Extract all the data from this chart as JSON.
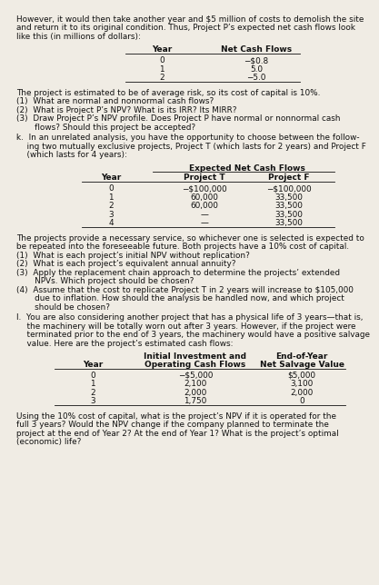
{
  "bg_color": "#f0ece4",
  "intro_text_lines": [
    "However, it would then take another year and $5 million of costs to demolish the site",
    "and return it to its original condition. Thus, Project P’s expected net cash flows look",
    "like this (in millions of dollars):"
  ],
  "table1_title_year": "Year",
  "table1_title_ncf": "Net Cash Flows",
  "table1_rows": [
    [
      "0",
      "−$0.8"
    ],
    [
      "1",
      "5.0"
    ],
    [
      "2",
      "−5.0"
    ]
  ],
  "para1": "The project is estimated to be of average risk, so its cost of capital is 10%.",
  "items_j": [
    [
      "(1)  What are normal and nonnormal cash flows?"
    ],
    [
      "(2)  What is Project P’s NPV? What is its IRR? Its MIRR?"
    ],
    [
      "(3)  Draw Project P’s NPV profile. Does Project P have normal or nonnormal cash",
      "       flows? Should this project be accepted?"
    ]
  ],
  "item_k_intro_lines": [
    "k.  In an unrelated analysis, you have the opportunity to choose between the follow-",
    "    ing two mutually exclusive projects, Project T (which lasts for 2 years) and Project F",
    "    (which lasts for 4 years):"
  ],
  "table2_super": "Expected Net Cash Flows",
  "table2_headers": [
    "Year",
    "Project T",
    "Project F"
  ],
  "table2_rows": [
    [
      "0",
      "−$100,000",
      "−$100,000"
    ],
    [
      "1",
      "60,000",
      "33,500"
    ],
    [
      "2",
      "60,000",
      "33,500"
    ],
    [
      "3",
      "—",
      "33,500"
    ],
    [
      "4",
      "—",
      "33,500"
    ]
  ],
  "para_k_lines": [
    "The projects provide a necessary service, so whichever one is selected is expected to",
    "be repeated into the foreseeable future. Both projects have a 10% cost of capital."
  ],
  "items_k": [
    [
      "(1)  What is each project’s initial NPV without replication?"
    ],
    [
      "(2)  What is each project’s equivalent annual annuity?"
    ],
    [
      "(3)  Apply the replacement chain approach to determine the projects’ extended",
      "       NPVs. Which project should be chosen?"
    ],
    [
      "(4)  Assume that the cost to replicate Project T in 2 years will increase to $105,000",
      "       due to inflation. How should the analysis be handled now, and which project",
      "       should be chosen?"
    ]
  ],
  "item_l_intro_lines": [
    "l.  You are also considering another project that has a physical life of 3 years—that is,",
    "    the machinery will be totally worn out after 3 years. However, if the project were",
    "    terminated prior to the end of 3 years, the machinery would have a positive salvage",
    "    value. Here are the project’s estimated cash flows:"
  ],
  "table3_h1": "Initial Investment and",
  "table3_h2": "Operating Cash Flows",
  "table3_h3": "End-of-Year",
  "table3_h4": "Net Salvage Value",
  "table3_col1": "Year",
  "table3_rows": [
    [
      "0",
      "−$5,000",
      "$5,000"
    ],
    [
      "1",
      "2,100",
      "3,100"
    ],
    [
      "2",
      "2,000",
      "2,000"
    ],
    [
      "3",
      "1,750",
      "0"
    ]
  ],
  "para_l_lines": [
    "Using the 10% cost of capital, what is the project’s NPV if it is operated for the",
    "full 3 years? Would the NPV change if the company planned to terminate the",
    "project at the end of Year 2? At the end of Year 1? What is the project’s optimal",
    "(economic) life?"
  ]
}
